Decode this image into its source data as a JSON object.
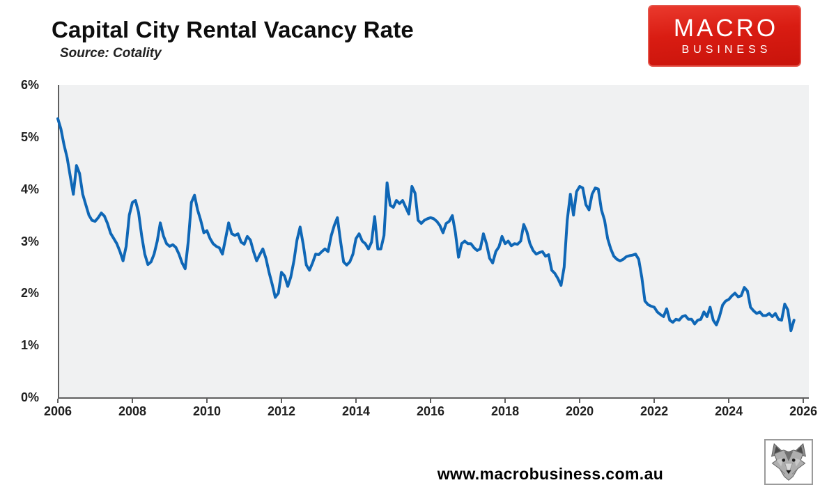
{
  "header": {
    "title": "Capital City Rental Vacancy Rate",
    "source": "Source: Cotality",
    "logo": {
      "line1": "MACRO",
      "line2": "BUSINESS",
      "bg_color": "#d91c12",
      "text_color": "#ffffff"
    }
  },
  "footer": {
    "url": "www.macrobusiness.com.au",
    "wolf_icon": "wolf-head-icon"
  },
  "chart_data": {
    "type": "line",
    "title": "Capital City Rental Vacancy Rate",
    "subtitle": "Source: Cotality",
    "series_name": "Capital city rental vacancy rate (%)",
    "x_start_year": 2006.0,
    "x_step_years": 0.0833333,
    "xlim": [
      2006.0,
      2026.11
    ],
    "ylim": [
      0,
      6
    ],
    "y_unit": "%",
    "grid": false,
    "legend": "none",
    "line_color": "#0f67b6",
    "line_width": 4,
    "plot_bg_color": "#f0f1f2",
    "axis_color": "#5f5f5f",
    "x_tick_labels": [
      "2006",
      "2008",
      "2010",
      "2012",
      "2014",
      "2016",
      "2018",
      "2020",
      "2022",
      "2024",
      "2026"
    ],
    "x_tick_years": [
      2006,
      2008,
      2010,
      2012,
      2014,
      2016,
      2018,
      2020,
      2022,
      2024,
      2026
    ],
    "y_tick_labels": [
      "0%",
      "1%",
      "2%",
      "3%",
      "4%",
      "5%",
      "6%"
    ],
    "y_tick_values": [
      0,
      1,
      2,
      3,
      4,
      5,
      6
    ],
    "values": [
      5.35,
      5.15,
      4.85,
      4.6,
      4.25,
      3.9,
      4.45,
      4.3,
      3.9,
      3.7,
      3.5,
      3.4,
      3.38,
      3.45,
      3.54,
      3.48,
      3.34,
      3.15,
      3.05,
      2.95,
      2.8,
      2.62,
      2.9,
      3.5,
      3.74,
      3.78,
      3.55,
      3.1,
      2.75,
      2.55,
      2.6,
      2.75,
      3.0,
      3.35,
      3.1,
      2.95,
      2.9,
      2.93,
      2.88,
      2.75,
      2.58,
      2.47,
      3.0,
      3.74,
      3.88,
      3.6,
      3.4,
      3.16,
      3.2,
      3.05,
      2.95,
      2.9,
      2.87,
      2.75,
      3.05,
      3.35,
      3.14,
      3.11,
      3.14,
      2.98,
      2.94,
      3.09,
      3.02,
      2.8,
      2.62,
      2.74,
      2.85,
      2.67,
      2.4,
      2.17,
      1.92,
      2.0,
      2.4,
      2.33,
      2.13,
      2.31,
      2.62,
      3.02,
      3.27,
      2.94,
      2.54,
      2.44,
      2.58,
      2.75,
      2.74,
      2.8,
      2.85,
      2.8,
      3.1,
      3.3,
      3.45,
      3.0,
      2.6,
      2.54,
      2.6,
      2.75,
      3.05,
      3.14,
      3.0,
      2.95,
      2.85,
      2.98,
      3.47,
      2.85,
      2.85,
      3.11,
      4.12,
      3.69,
      3.65,
      3.78,
      3.72,
      3.78,
      3.65,
      3.52,
      4.05,
      3.92,
      3.4,
      3.34,
      3.4,
      3.43,
      3.45,
      3.43,
      3.38,
      3.3,
      3.16,
      3.34,
      3.38,
      3.49,
      3.16,
      2.69,
      2.95,
      3.0,
      2.95,
      2.95,
      2.87,
      2.82,
      2.85,
      3.14,
      2.95,
      2.67,
      2.58,
      2.8,
      2.89,
      3.09,
      2.95,
      3.0,
      2.91,
      2.95,
      2.94,
      3.0,
      3.32,
      3.18,
      2.95,
      2.82,
      2.75,
      2.78,
      2.8,
      2.71,
      2.74,
      2.44,
      2.38,
      2.28,
      2.15,
      2.5,
      3.4,
      3.9,
      3.5,
      3.95,
      4.05,
      4.02,
      3.7,
      3.6,
      3.9,
      4.02,
      4.0,
      3.6,
      3.4,
      3.05,
      2.85,
      2.71,
      2.65,
      2.62,
      2.65,
      2.7,
      2.72,
      2.73,
      2.75,
      2.65,
      2.3,
      1.85,
      1.78,
      1.75,
      1.73,
      1.64,
      1.59,
      1.55,
      1.7,
      1.48,
      1.44,
      1.5,
      1.48,
      1.55,
      1.57,
      1.5,
      1.5,
      1.41,
      1.48,
      1.5,
      1.64,
      1.55,
      1.73,
      1.48,
      1.39,
      1.55,
      1.77,
      1.85,
      1.88,
      1.95,
      2.0,
      1.93,
      1.95,
      2.11,
      2.04,
      1.73,
      1.66,
      1.61,
      1.64,
      1.57,
      1.57,
      1.61,
      1.55,
      1.61,
      1.5,
      1.48,
      1.79,
      1.68,
      1.28,
      1.48
    ]
  }
}
